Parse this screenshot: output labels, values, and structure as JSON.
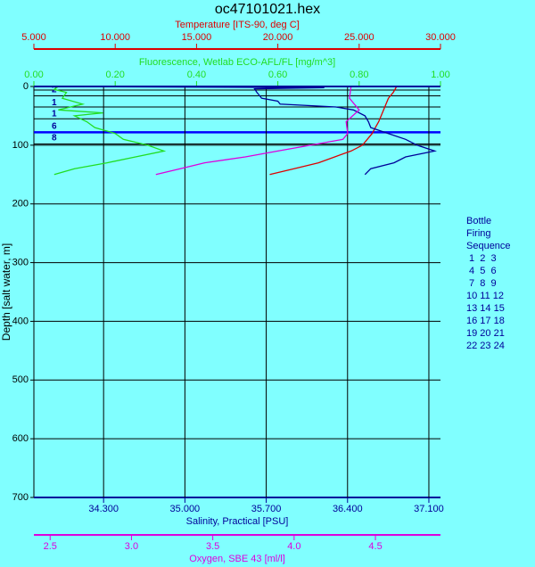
{
  "chart_data": {
    "type": "profile",
    "title": "oc47101021.hex",
    "background": "#80ffff",
    "y_axis": {
      "title": "Depth [salt water, m]",
      "ylim": [
        0,
        700
      ],
      "yticks": [
        0,
        100,
        200,
        300,
        400,
        500,
        600,
        700
      ],
      "reversed": true,
      "grid": true
    },
    "axes": [
      {
        "title": "Fluorescence, Wetlab ECO-AFL/FL [mg/m^3]",
        "color": "#22dd22",
        "position": "top",
        "xlim": [
          0,
          1
        ],
        "xticks": [
          {
            "value": 0,
            "label": "0.00"
          },
          {
            "value": 0.2,
            "label": "0.20"
          },
          {
            "value": 0.4,
            "label": "0.40"
          },
          {
            "value": 0.6,
            "label": "0.60"
          },
          {
            "value": 0.8,
            "label": "0.80"
          },
          {
            "value": 1,
            "label": "1.00"
          }
        ],
        "depth": [
          0,
          5,
          10,
          20,
          30,
          40,
          45,
          50,
          60,
          70,
          80,
          90,
          100,
          110,
          120,
          130,
          140,
          150
        ],
        "values": [
          0.06,
          0.05,
          0.08,
          0.07,
          0.12,
          0.06,
          0.17,
          0.1,
          0.13,
          0.15,
          0.2,
          0.22,
          0.28,
          0.32,
          0.25,
          0.18,
          0.1,
          0.05
        ]
      },
      {
        "title": "Temperature [ITS-90, deg C]",
        "color": "#dd0000",
        "position": "top",
        "xlim": [
          5,
          30
        ],
        "xticks": [
          {
            "value": 5,
            "label": "5.000"
          },
          {
            "value": 10,
            "label": "10.000"
          },
          {
            "value": 15,
            "label": "15.000"
          },
          {
            "value": 20,
            "label": "20.000"
          },
          {
            "value": 25,
            "label": "25.000"
          },
          {
            "value": 30,
            "label": "30.000"
          }
        ],
        "depth": [
          0,
          10,
          20,
          40,
          60,
          70,
          80,
          90,
          100,
          110,
          120,
          130,
          140,
          150
        ],
        "values": [
          27.3,
          27.1,
          26.8,
          26.5,
          26.2,
          26.0,
          25.8,
          25.5,
          25.2,
          24.5,
          23.5,
          22.5,
          21,
          19.5
        ]
      },
      {
        "title": "Salinity, Practical [PSU]",
        "color": "#000099",
        "position": "bottom",
        "xlim": [
          33.7,
          37.2
        ],
        "grid": true,
        "xticks": [
          {
            "value": 34.3,
            "label": "34.300"
          },
          {
            "value": 35,
            "label": "35.000"
          },
          {
            "value": 35.7,
            "label": "35.700"
          },
          {
            "value": 36.4,
            "label": "36.400"
          },
          {
            "value": 37.1,
            "label": "37.100"
          }
        ],
        "depth": [
          0,
          2,
          4,
          10,
          15,
          20,
          25,
          30,
          35,
          40,
          50,
          60,
          70,
          80,
          90,
          100,
          110,
          120,
          130,
          140,
          150
        ],
        "values": [
          33.75,
          36.2,
          35.6,
          35.62,
          35.64,
          35.66,
          35.8,
          35.82,
          36.3,
          36.45,
          36.55,
          36.58,
          36.6,
          36.75,
          36.9,
          37.0,
          37.15,
          36.9,
          36.8,
          36.6,
          36.55
        ]
      },
      {
        "title": "Oxygen, SBE 43 [ml/l]",
        "color": "#dd00dd",
        "position": "bottom",
        "xlim": [
          2.4,
          4.9
        ],
        "xticks": [
          2.5,
          {
            "value": 3,
            "label": "3.0"
          },
          3.5,
          {
            "value": 4,
            "label": "4.0"
          },
          4.5
        ],
        "depth": [
          0,
          20,
          40,
          60,
          80,
          90,
          100,
          110,
          120,
          130,
          140,
          150
        ],
        "values": [
          4.35,
          4.34,
          4.4,
          4.32,
          4.33,
          4.3,
          4.1,
          3.9,
          3.7,
          3.45,
          3.3,
          3.15
        ]
      }
    ],
    "bottle_depths": [
      6,
      16,
      35,
      55,
      78,
      98
    ],
    "bottle_labels": [
      {
        "depth": 6,
        "label": "2"
      },
      {
        "depth": 28,
        "label": "1"
      },
      {
        "depth": 47,
        "label": "1"
      },
      {
        "depth": 68,
        "label": "6"
      },
      {
        "depth": 88,
        "label": "8"
      }
    ],
    "legend": [
      "Bottle",
      "Firing",
      "Sequence",
      " 1  2  3",
      " 4  5  6",
      " 7  8  9",
      "10 11 12",
      "13 14 15",
      "16 17 18",
      "19 20 21",
      "22 23 24"
    ]
  }
}
